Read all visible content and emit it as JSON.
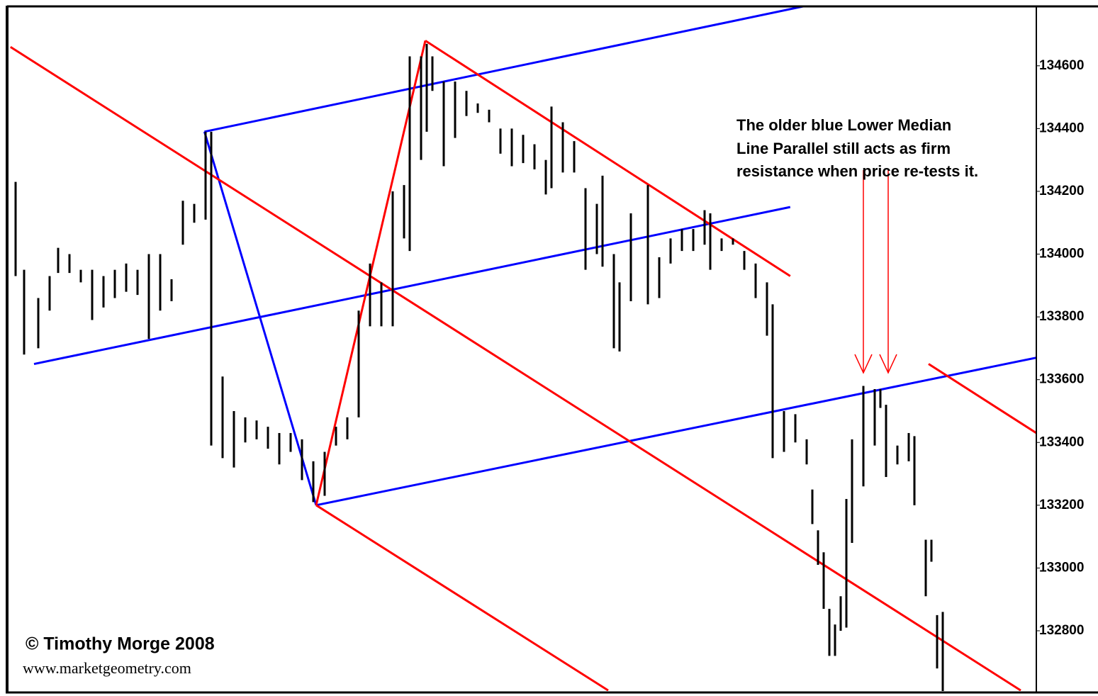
{
  "chart_data": {
    "type": "hl",
    "xlim": [
      -0.5,
      181
    ],
    "ylim": [
      132608,
      134787
    ],
    "yticks": [
      132800,
      133000,
      133200,
      133400,
      133600,
      133800,
      134000,
      134200,
      134400,
      134600
    ],
    "bar_color": "#000000",
    "x": [
      1,
      2.5,
      5,
      7,
      8.5,
      10.5,
      12.5,
      14.5,
      16.5,
      18.5,
      20.5,
      22.5,
      24.5,
      26.5,
      28.5,
      30.5,
      32.5,
      34.5,
      35.5,
      37.5,
      39.5,
      41.5,
      43.5,
      45.5,
      47.5,
      49.5,
      51.5,
      53.5,
      55.5,
      57.5,
      59.5,
      61.5,
      63.5,
      65.5,
      67.5,
      69.5,
      70.5,
      72.5,
      73.5,
      74.5,
      76.5,
      78.5,
      80.5,
      82.5,
      84.5,
      86.5,
      88.5,
      90.5,
      92.5,
      94.5,
      95.5,
      97.5,
      99.5,
      101.5,
      103.5,
      104.5,
      106.5,
      107.5,
      109.5,
      112.5,
      114.5,
      116.5,
      118.5,
      120.5,
      122.5,
      123.5,
      125.5,
      127.5,
      129.5,
      131.5,
      133.5,
      134.5,
      136.5,
      138.5,
      140.5,
      141.5,
      142.5,
      143.5,
      144.5,
      145.5,
      146.5,
      147.5,
      148.5,
      150.5,
      152.5,
      153.5,
      154.5,
      156.5,
      158.5,
      159.5,
      161.5,
      162.5,
      163.5,
      164.5
    ],
    "high": [
      134230,
      133950,
      133860,
      133930,
      134020,
      134000,
      133950,
      133950,
      133930,
      133950,
      133970,
      133950,
      134000,
      134000,
      133920,
      134170,
      134160,
      134390,
      134390,
      133610,
      133500,
      133480,
      133470,
      133450,
      133430,
      133430,
      133410,
      133340,
      133370,
      133450,
      133480,
      133820,
      133970,
      133910,
      134200,
      134220,
      134630,
      134630,
      134670,
      134630,
      134550,
      134550,
      134520,
      134480,
      134460,
      134400,
      134400,
      134380,
      134350,
      134300,
      134470,
      134420,
      134360,
      134210,
      134160,
      134250,
      134000,
      133910,
      134130,
      134220,
      133990,
      134050,
      134080,
      134080,
      134140,
      134130,
      134050,
      134050,
      134010,
      133970,
      133910,
      133840,
      133500,
      133490,
      133410,
      133250,
      133120,
      133050,
      132870,
      132820,
      132910,
      133220,
      133410,
      133580,
      133570,
      133570,
      133520,
      133390,
      133430,
      133420,
      133090,
      133090,
      132850,
      132860
    ],
    "low": [
      133930,
      133680,
      133700,
      133820,
      133940,
      133940,
      133910,
      133790,
      133830,
      133860,
      133880,
      133870,
      133730,
      133820,
      133850,
      134030,
      134100,
      134110,
      133390,
      133350,
      133320,
      133400,
      133410,
      133380,
      133330,
      133370,
      133280,
      133210,
      133230,
      133390,
      133410,
      133480,
      133770,
      133770,
      133770,
      134050,
      134010,
      134300,
      134390,
      134520,
      134280,
      134370,
      134440,
      134450,
      134420,
      134320,
      134280,
      134290,
      134270,
      134190,
      134210,
      134260,
      134260,
      133950,
      134000,
      133960,
      133700,
      133690,
      133850,
      133840,
      133860,
      133970,
      134010,
      134010,
      134030,
      133950,
      134010,
      134030,
      133950,
      133860,
      133740,
      133350,
      133370,
      133400,
      133330,
      133140,
      133010,
      132870,
      132720,
      132720,
      132800,
      132810,
      133080,
      133260,
      133390,
      133510,
      133290,
      133330,
      133340,
      133200,
      132910,
      133020,
      132680,
      132600
    ],
    "lines": [
      {
        "color": "#0000ff",
        "points": [
          [
            34.3,
            134390
          ],
          [
            54,
            133200
          ]
        ]
      },
      {
        "color": "#0000ff",
        "points": [
          [
            34.3,
            134390
          ],
          [
            140.1,
            134790
          ]
        ]
      },
      {
        "color": "#0000ff",
        "points": [
          [
            4.25,
            133650
          ],
          [
            137.6,
            134150
          ]
        ]
      },
      {
        "color": "#0000ff",
        "points": [
          [
            54,
            133200
          ],
          [
            181,
            133670
          ]
        ]
      },
      {
        "color": "#ff0000",
        "points": [
          [
            54,
            133200
          ],
          [
            73.25,
            134680
          ]
        ]
      },
      {
        "color": "#ff0000",
        "points": [
          [
            0.1,
            134660
          ],
          [
            178.25,
            132610
          ]
        ]
      },
      {
        "color": "#ff0000",
        "points": [
          [
            73.25,
            134680
          ],
          [
            137.6,
            133930
          ]
        ]
      },
      {
        "color": "#ff0000",
        "points": [
          [
            54,
            133200
          ],
          [
            105.5,
            132610
          ]
        ]
      },
      {
        "color": "#ff0000",
        "points": [
          [
            162,
            133650
          ],
          [
            181,
            133430
          ]
        ]
      }
    ],
    "annotation": [
      "The older blue Lower Median",
      "Line Parallel still acts as firm",
      "resistance when price re-tests it."
    ],
    "credit": "© Timothy Morge 2008",
    "url": "www.marketgeometry.com"
  }
}
